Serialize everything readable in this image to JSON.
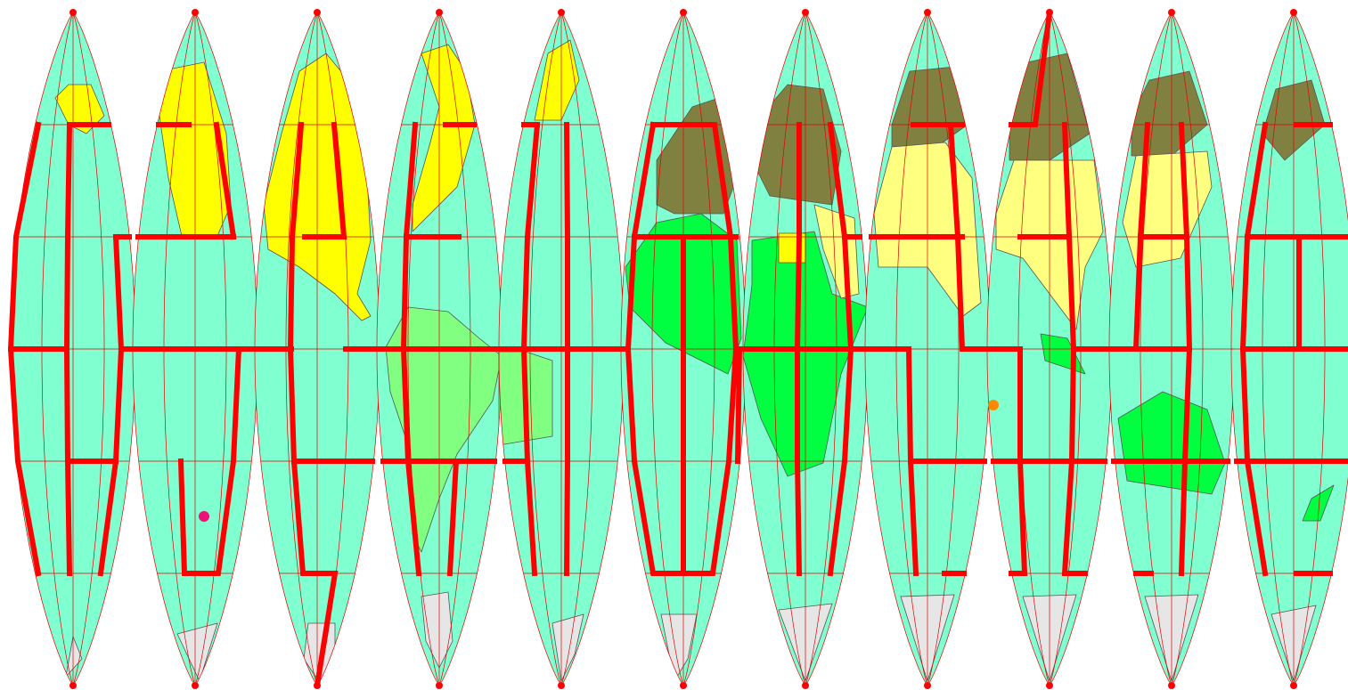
{
  "map": {
    "projection": "interrupted-gores",
    "gore_count": 11,
    "colors": {
      "ocean": "#80ffd0",
      "north_america": "#ffff00",
      "south_america": "#80ff80",
      "europe": "#808040",
      "africa": "#00ff40",
      "asia": "#ffff80",
      "oceania": "#00ff40",
      "antarctica": "#e6e6e6",
      "graticule": "#e00000",
      "zone_boundary": "#ff0000",
      "country_border": "#555555"
    },
    "markers": [
      {
        "name": "marker-pink",
        "color": "#ee1177"
      },
      {
        "name": "marker-orange",
        "color": "#ff8800"
      }
    ]
  }
}
